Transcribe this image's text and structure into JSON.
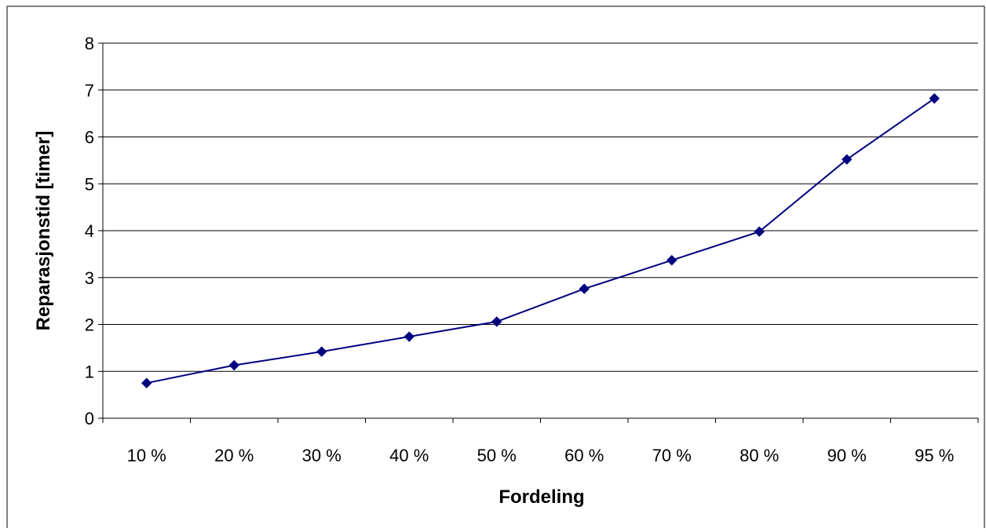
{
  "chart_data": {
    "type": "line",
    "title": "",
    "xlabel": "Fordeling",
    "ylabel": "Reparasjonstid [timer]",
    "categories": [
      "10 %",
      "20 %",
      "30 %",
      "40 %",
      "50 %",
      "60 %",
      "70 %",
      "80 %",
      "90 %",
      "95 %"
    ],
    "series": [
      {
        "values": [
          0.75,
          1.13,
          1.42,
          1.74,
          2.06,
          2.76,
          3.37,
          3.98,
          5.52,
          6.82
        ],
        "color": "#000080",
        "marker": "diamond"
      }
    ],
    "ylim": [
      0,
      8
    ],
    "yticks": [
      "0",
      "1",
      "2",
      "3",
      "4",
      "5",
      "6",
      "7",
      "8"
    ],
    "grid": "horizontal",
    "legend": "none"
  }
}
